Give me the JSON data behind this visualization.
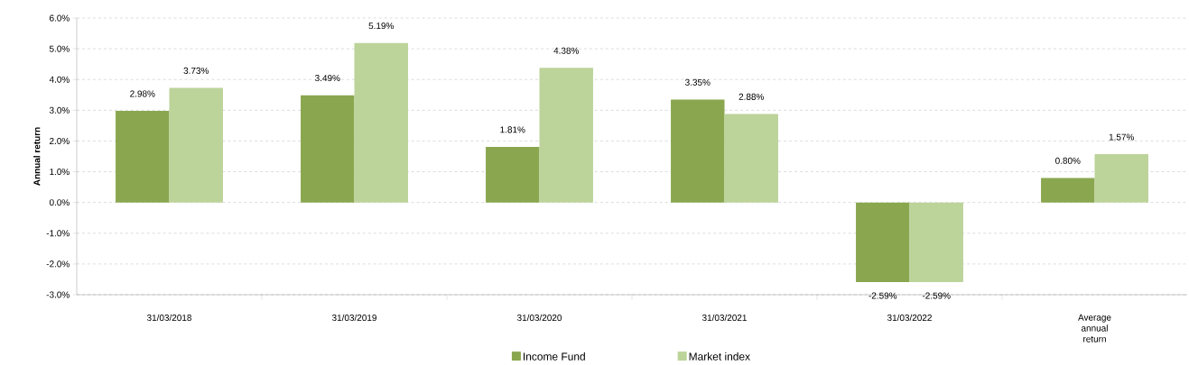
{
  "chart_data": {
    "type": "bar",
    "ylabel": "Annual return",
    "categories": [
      "31/03/2018",
      "31/03/2019",
      "31/03/2020",
      "31/03/2021",
      "31/03/2022",
      "Average annual return"
    ],
    "series": [
      {
        "name": "Income Fund",
        "color": "#8aa74f",
        "values": [
          2.98,
          3.49,
          1.81,
          3.35,
          -2.59,
          0.8
        ],
        "value_labels": [
          "2.98%",
          "3.49%",
          "1.81%",
          "3.35%",
          "-2.59%",
          "0.80%"
        ]
      },
      {
        "name": "Market index",
        "color": "#bcd39a",
        "values": [
          3.73,
          5.19,
          4.38,
          2.88,
          -2.59,
          1.57
        ],
        "value_labels": [
          "3.73%",
          "5.19%",
          "4.38%",
          "2.88%",
          "-2.59%",
          "1.57%"
        ]
      }
    ],
    "ylim": [
      -3,
      6
    ],
    "yticks": [
      {
        "value": -3,
        "label": "-3.0%"
      },
      {
        "value": -2,
        "label": "-2.0%"
      },
      {
        "value": -1,
        "label": "-1.0%"
      },
      {
        "value": 0,
        "label": "0.0%"
      },
      {
        "value": 1,
        "label": "1.0%"
      },
      {
        "value": 2,
        "label": "2.0%"
      },
      {
        "value": 3,
        "label": "3.0%"
      },
      {
        "value": 4,
        "label": "4.0%"
      },
      {
        "value": 5,
        "label": "5.0%"
      },
      {
        "value": 6,
        "label": "6.0%"
      }
    ],
    "grid": "y",
    "legend": "bottom"
  }
}
